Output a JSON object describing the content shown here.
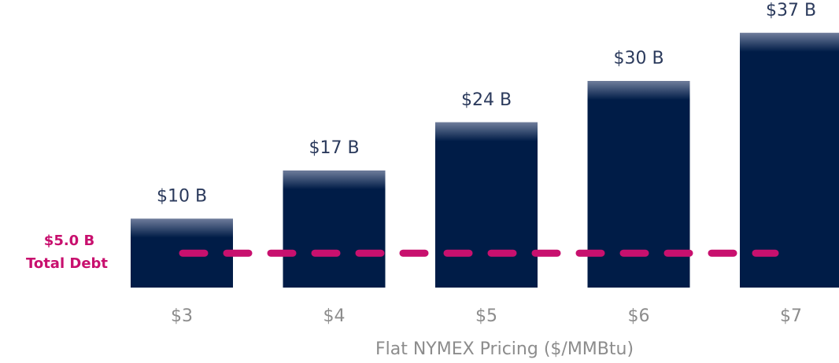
{
  "chart_data": {
    "type": "bar",
    "categories": [
      "$3",
      "$4",
      "$5",
      "$6",
      "$7"
    ],
    "values": [
      10,
      17,
      24,
      30,
      37
    ],
    "value_labels": [
      "$10 B",
      "$17 B",
      "$24 B",
      "$30 B",
      "$37 B"
    ],
    "color": "#001c47",
    "x_label": "Flat NYMEX Pricing ($/MMBtu)",
    "reference_line": {
      "value": 5,
      "label": "$5.0 B",
      "text": "Total Debt",
      "color": "#c8106e"
    }
  }
}
